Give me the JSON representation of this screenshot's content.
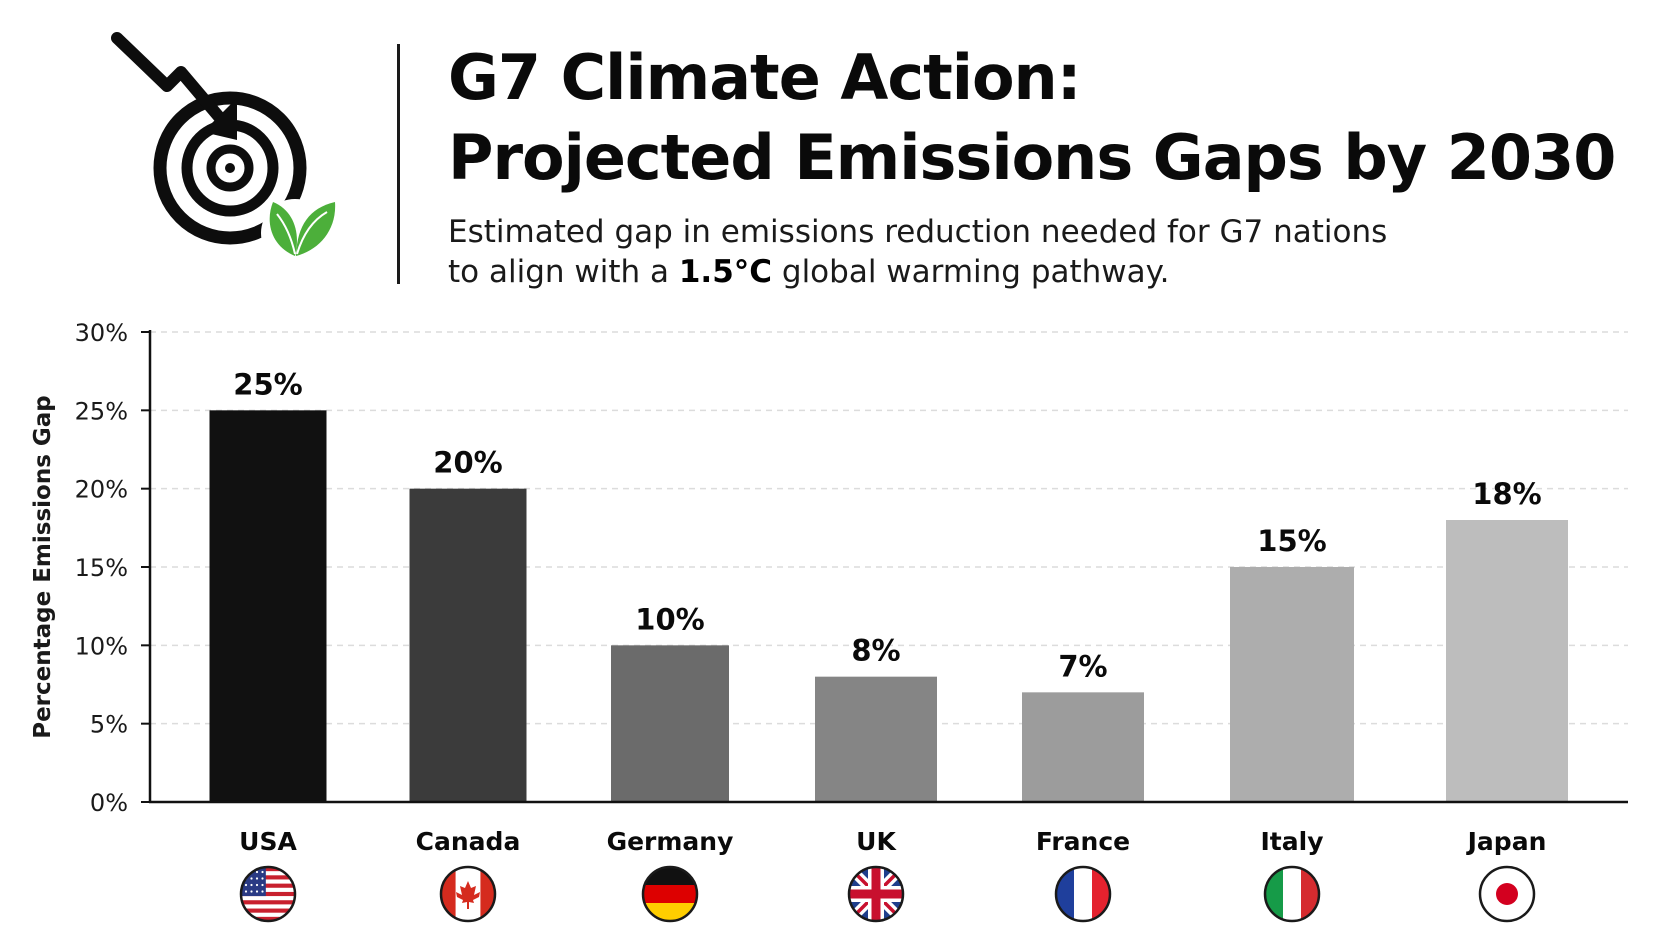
{
  "header": {
    "title_line1": "G7 Climate Action:",
    "title_line2": "Projected Emissions Gaps by 2030",
    "subtitle_line1": "Estimated gap in emissions reduction needed for G7 nations",
    "subtitle_line2_pre": "to align with a ",
    "subtitle_line2_bold": "1.5°C",
    "subtitle_line2_post": " global warming pathway.",
    "icon": "target-arrow-leaf-icon",
    "leaf_color": "#4caf3a"
  },
  "chart_data": {
    "type": "bar",
    "title": "G7 Climate Action: Projected Emissions Gaps by 2030",
    "subtitle": "Estimated gap in emissions reduction needed for G7 nations to align with a 1.5°C global warming pathway.",
    "categories": [
      "USA",
      "Canada",
      "Germany",
      "UK",
      "France",
      "Italy",
      "Japan"
    ],
    "values": [
      25,
      20,
      10,
      8,
      7,
      15,
      18
    ],
    "value_labels": [
      "25%",
      "20%",
      "10%",
      "8%",
      "7%",
      "15%",
      "18%"
    ],
    "bar_colors": [
      "#111111",
      "#3b3b3b",
      "#6b6b6b",
      "#858585",
      "#9c9c9c",
      "#adadad",
      "#bdbdbd"
    ],
    "flags": [
      "usa-flag-icon",
      "canada-flag-icon",
      "germany-flag-icon",
      "uk-flag-icon",
      "france-flag-icon",
      "italy-flag-icon",
      "japan-flag-icon"
    ],
    "xlabel": "",
    "ylabel": "Percentage Emissions Gap",
    "ylim": [
      0,
      30
    ],
    "yticks": [
      0,
      5,
      10,
      15,
      20,
      25,
      30
    ],
    "ytick_labels": [
      "0%",
      "5%",
      "10%",
      "15%",
      "20%",
      "25%",
      "30%"
    ],
    "grid": true,
    "legend": "none"
  }
}
